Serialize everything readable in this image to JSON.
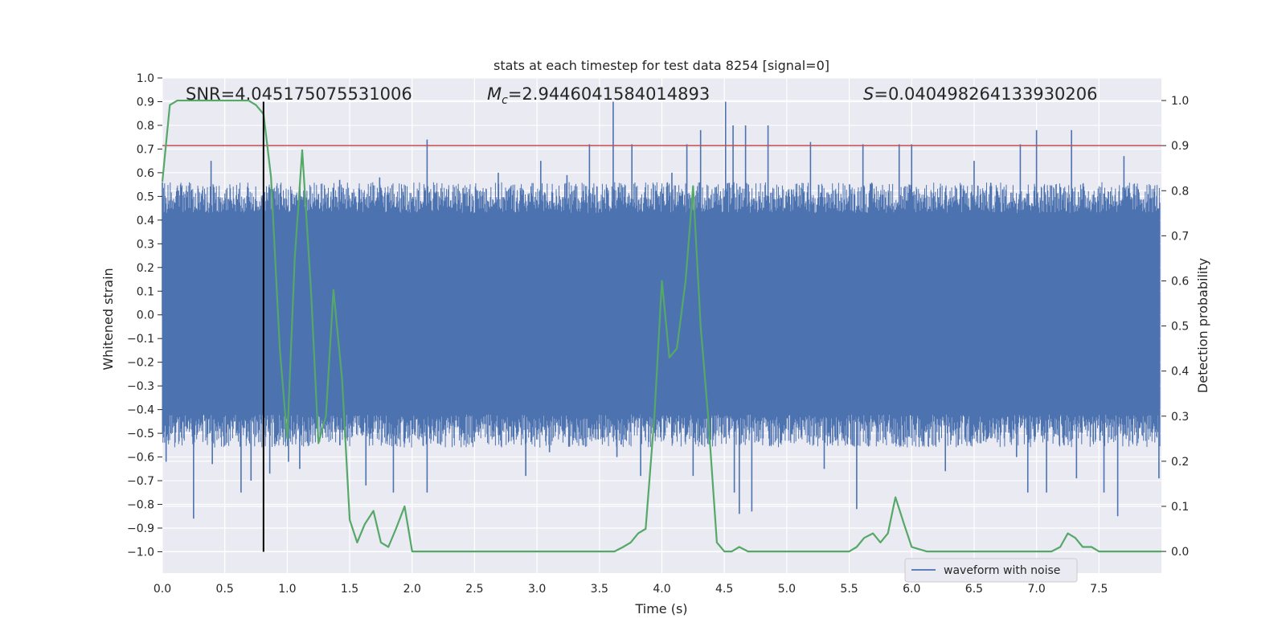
{
  "chart_data": {
    "type": "line",
    "title": "stats at each timestep for test data 8254 [signal=0]",
    "xlabel": "Time (s)",
    "ylabel": "Whitened strain",
    "y2label": "Detection probability",
    "xlim": [
      0.0,
      8.0
    ],
    "ylim": [
      -1.09,
      1.0
    ],
    "y2lim": [
      -0.048,
      1.05
    ],
    "x_ticks": [
      0.0,
      0.5,
      1.0,
      1.5,
      2.0,
      2.5,
      3.0,
      3.5,
      4.0,
      4.5,
      5.0,
      5.5,
      6.0,
      6.5,
      7.0,
      7.5
    ],
    "x_tick_labels": [
      "0.0",
      "0.5",
      "1.0",
      "1.5",
      "2.0",
      "2.5",
      "3.0",
      "3.5",
      "4.0",
      "4.5",
      "5.0",
      "5.5",
      "6.0",
      "6.5",
      "7.0",
      "7.5"
    ],
    "y_ticks": [
      1.0,
      0.9,
      0.8,
      0.7,
      0.6,
      0.5,
      0.4,
      0.3,
      0.2,
      0.1,
      0.0,
      -0.1,
      -0.2,
      -0.3,
      -0.4,
      -0.5,
      -0.6,
      -0.7,
      -0.8,
      -0.9,
      -1.0
    ],
    "y_tick_labels": [
      "1.0",
      "0.9",
      "0.8",
      "0.7",
      "0.6",
      "0.5",
      "0.4",
      "0.3",
      "0.2",
      "0.1",
      "0.0",
      "−0.1",
      "−0.2",
      "−0.3",
      "−0.4",
      "−0.5",
      "−0.6",
      "−0.7",
      "−0.8",
      "−0.9",
      "−1.0"
    ],
    "y2_ticks": [
      1.0,
      0.9,
      0.8,
      0.7,
      0.6,
      0.5,
      0.4,
      0.3,
      0.2,
      0.1,
      0.0
    ],
    "y2_tick_labels": [
      "1.0",
      "0.9",
      "0.8",
      "0.7",
      "0.6",
      "0.5",
      "0.4",
      "0.3",
      "0.2",
      "0.1",
      "0.0"
    ],
    "grid": true,
    "legend": {
      "position": "lower-right",
      "entries": [
        "waveform with noise"
      ]
    },
    "annotations": {
      "snr": "SNR=4.045175075531006",
      "mc_symbol": "M",
      "mc_sub": "c",
      "mc_value": "=2.9446041584014893",
      "s_symbol": "S",
      "s_value": "=0.040498264133930206"
    },
    "threshold": {
      "y2": 0.9,
      "color": "#c44e52"
    },
    "vertical_marker": {
      "x": 0.81,
      "y_from": -1.0,
      "y_to": 0.9,
      "color": "#000000"
    },
    "waveform": {
      "name": "waveform with noise",
      "color": "#4c72b0",
      "x_range": [
        0.0,
        7.99
      ],
      "core_band": [
        -0.42,
        0.43
      ],
      "noise_band": [
        -0.56,
        0.56
      ],
      "spikes": [
        [
          0.0,
          0.56
        ],
        [
          0.03,
          -0.62
        ],
        [
          0.25,
          -0.86
        ],
        [
          0.39,
          0.65
        ],
        [
          0.4,
          -0.63
        ],
        [
          0.63,
          -0.75
        ],
        [
          0.71,
          -0.7
        ],
        [
          0.86,
          -0.67
        ],
        [
          1.01,
          -0.62
        ],
        [
          1.1,
          -0.65
        ],
        [
          1.42,
          0.57
        ],
        [
          1.63,
          -0.72
        ],
        [
          1.74,
          0.58
        ],
        [
          1.85,
          -0.75
        ],
        [
          2.12,
          0.74
        ],
        [
          2.12,
          -0.75
        ],
        [
          2.69,
          0.6
        ],
        [
          2.91,
          -0.68
        ],
        [
          3.03,
          0.65
        ],
        [
          3.1,
          -0.58
        ],
        [
          3.24,
          0.59
        ],
        [
          3.42,
          0.72
        ],
        [
          3.61,
          0.9
        ],
        [
          3.64,
          -0.6
        ],
        [
          3.76,
          0.72
        ],
        [
          3.83,
          -0.68
        ],
        [
          4.08,
          0.6
        ],
        [
          4.2,
          0.72
        ],
        [
          4.25,
          -0.68
        ],
        [
          4.31,
          0.78
        ],
        [
          4.51,
          0.9
        ],
        [
          4.57,
          0.8
        ],
        [
          4.62,
          -0.84
        ],
        [
          4.58,
          -0.75
        ],
        [
          4.67,
          0.8
        ],
        [
          4.72,
          -0.83
        ],
        [
          4.85,
          0.8
        ],
        [
          5.19,
          0.73
        ],
        [
          5.3,
          -0.65
        ],
        [
          5.56,
          -0.82
        ],
        [
          5.61,
          0.72
        ],
        [
          5.9,
          0.72
        ],
        [
          6.0,
          0.72
        ],
        [
          6.27,
          -0.66
        ],
        [
          6.5,
          0.65
        ],
        [
          6.84,
          -0.6
        ],
        [
          6.87,
          0.72
        ],
        [
          6.93,
          -0.75
        ],
        [
          7.0,
          0.78
        ],
        [
          7.08,
          -0.75
        ],
        [
          7.28,
          0.78
        ],
        [
          7.32,
          -0.69
        ],
        [
          7.54,
          -0.75
        ],
        [
          7.65,
          -0.85
        ],
        [
          7.7,
          0.67
        ],
        [
          7.98,
          -0.69
        ]
      ]
    },
    "detection_probability": {
      "name": "detection probability",
      "color": "#55a868",
      "x": [
        0.0,
        0.06,
        0.12,
        0.19,
        0.25,
        0.31,
        0.37,
        0.44,
        0.5,
        0.56,
        0.62,
        0.69,
        0.75,
        0.81,
        0.87,
        0.94,
        1.0,
        1.06,
        1.12,
        1.19,
        1.25,
        1.31,
        1.37,
        1.44,
        1.5,
        1.56,
        1.62,
        1.69,
        1.75,
        1.81,
        1.87,
        1.94,
        2.0,
        2.06,
        2.12,
        2.19,
        2.25,
        2.5,
        2.75,
        3.0,
        3.25,
        3.5,
        3.62,
        3.69,
        3.75,
        3.81,
        3.87,
        3.94,
        4.0,
        4.06,
        4.12,
        4.19,
        4.25,
        4.31,
        4.37,
        4.44,
        4.5,
        4.56,
        4.62,
        4.69,
        4.75,
        5.0,
        5.25,
        5.37,
        5.5,
        5.56,
        5.62,
        5.69,
        5.75,
        5.81,
        5.87,
        5.94,
        6.0,
        6.12,
        6.25,
        6.5,
        6.75,
        7.0,
        7.12,
        7.19,
        7.25,
        7.31,
        7.37,
        7.44,
        7.5,
        7.62,
        7.75,
        8.0
      ],
      "values": [
        0.82,
        0.99,
        1.0,
        1.0,
        1.0,
        1.0,
        1.0,
        1.0,
        1.0,
        1.0,
        1.0,
        1.0,
        0.99,
        0.97,
        0.83,
        0.45,
        0.25,
        0.65,
        0.89,
        0.58,
        0.24,
        0.3,
        0.58,
        0.38,
        0.07,
        0.02,
        0.06,
        0.09,
        0.02,
        0.01,
        0.05,
        0.1,
        0.0,
        0.0,
        0.0,
        0.0,
        0.0,
        0.0,
        0.0,
        0.0,
        0.0,
        0.0,
        0.0,
        0.01,
        0.02,
        0.04,
        0.05,
        0.3,
        0.6,
        0.43,
        0.45,
        0.6,
        0.81,
        0.5,
        0.3,
        0.02,
        0.0,
        0.0,
        0.01,
        0.0,
        0.0,
        0.0,
        0.0,
        0.0,
        0.0,
        0.01,
        0.03,
        0.04,
        0.02,
        0.04,
        0.12,
        0.06,
        0.01,
        0.0,
        0.0,
        0.0,
        0.0,
        0.0,
        0.0,
        0.01,
        0.04,
        0.03,
        0.01,
        0.01,
        0.0,
        0.0,
        0.0,
        0.0
      ]
    }
  }
}
